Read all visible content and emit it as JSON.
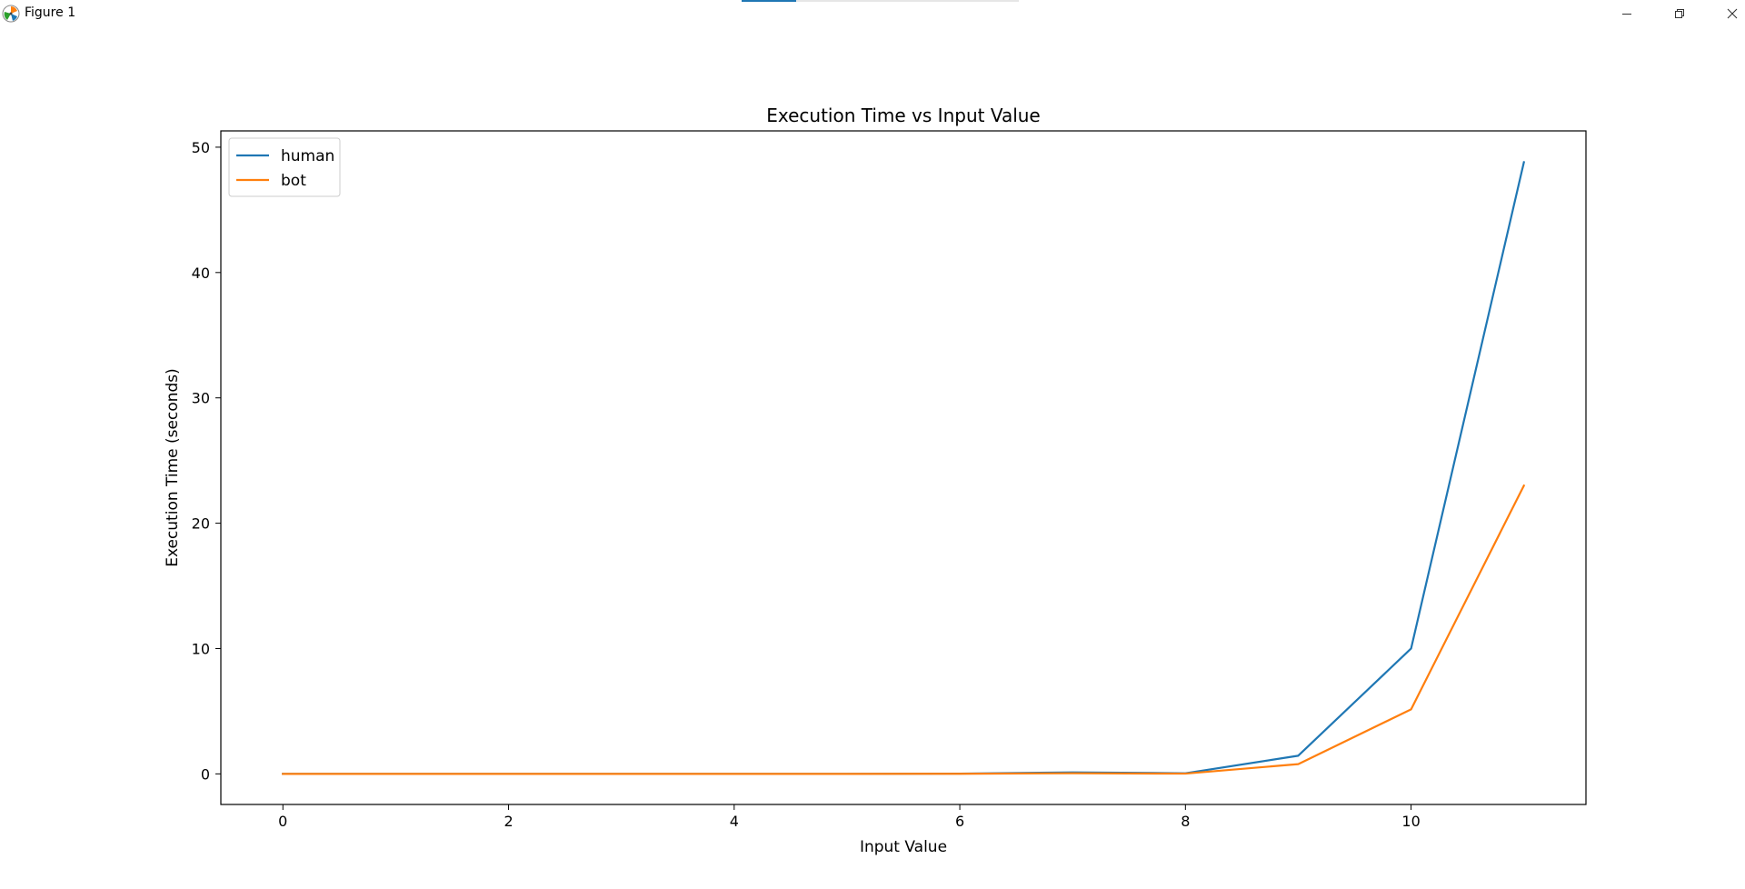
{
  "window": {
    "title": "Figure 1",
    "app_icon": "matplotlib-icon",
    "controls": {
      "minimize_icon": "minimize-icon",
      "maximize_icon": "restore-icon",
      "close_icon": "close-icon"
    }
  },
  "colors": {
    "human": "#1f77b4",
    "bot": "#ff7f0e",
    "axes": "#000000",
    "background": "#ffffff"
  },
  "chart_data": {
    "type": "line",
    "title": "Execution Time vs Input Value",
    "xlabel": "Input Value",
    "ylabel": "Execution Time (seconds)",
    "xlim": [
      -0.55,
      11.55
    ],
    "ylim": [
      -2.44,
      51.3
    ],
    "xticks": [
      0,
      2,
      4,
      6,
      8,
      10
    ],
    "xtick_labels": [
      "0",
      "2",
      "4",
      "6",
      "8",
      "10"
    ],
    "yticks": [
      0,
      10,
      20,
      30,
      40,
      50
    ],
    "ytick_labels": [
      "0",
      "10",
      "20",
      "30",
      "40",
      "50"
    ],
    "grid": false,
    "legend_position": "upper left",
    "x": [
      0,
      1,
      2,
      3,
      4,
      5,
      6,
      7,
      8,
      9,
      10,
      11
    ],
    "series": [
      {
        "name": "human",
        "color": "#1f77b4",
        "values": [
          0,
          0,
          0,
          0,
          0,
          0,
          0.02,
          0.12,
          0.05,
          1.45,
          10.0,
          48.8
        ]
      },
      {
        "name": "bot",
        "color": "#ff7f0e",
        "values": [
          0,
          0,
          0,
          0,
          0,
          0,
          0.01,
          0.05,
          0.02,
          0.78,
          5.15,
          23.0
        ]
      }
    ]
  }
}
